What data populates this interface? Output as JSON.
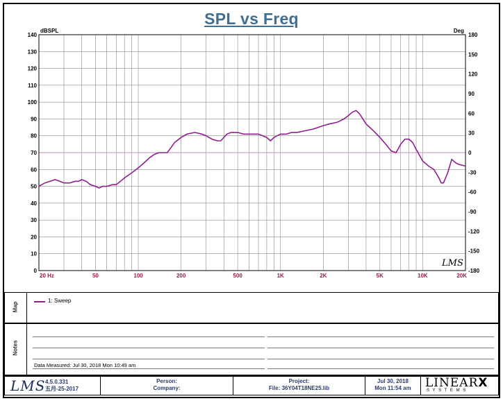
{
  "title": "SPL vs Freq",
  "colors": {
    "trace": "#8e1e8e",
    "title": "#3f6e92",
    "x_ticks": "#9b1c48",
    "zero_line": "#c78ac7"
  },
  "chart_data": {
    "type": "line",
    "title": "SPL vs Freq",
    "xscale": "log",
    "xlim": [
      20,
      20000
    ],
    "ylim": [
      0,
      140
    ],
    "y2lim": [
      -180,
      180
    ],
    "ylabel": "dBSPL",
    "y2label": "Deg",
    "xlabel": "",
    "grid": true,
    "x_tick_labels": [
      "20 Hz",
      "50",
      "100",
      "200",
      "500",
      "1K",
      "2K",
      "5K",
      "10K",
      "20K"
    ],
    "x_tick_values": [
      20,
      50,
      100,
      200,
      500,
      1000,
      2000,
      5000,
      10000,
      20000
    ],
    "y_ticks": [
      0,
      10,
      20,
      30,
      40,
      50,
      60,
      70,
      80,
      90,
      100,
      110,
      120,
      130,
      140
    ],
    "y2_ticks": [
      -180,
      -150,
      -120,
      -90,
      -60,
      -30,
      0,
      30,
      60,
      90,
      120,
      150,
      180
    ],
    "series": [
      {
        "name": "1: Sweep",
        "x": [
          20,
          22,
          24,
          26,
          28,
          30,
          33,
          36,
          38,
          40,
          43,
          46,
          50,
          53,
          56,
          60,
          66,
          70,
          75,
          80,
          90,
          100,
          110,
          120,
          130,
          140,
          150,
          160,
          170,
          180,
          200,
          220,
          250,
          280,
          300,
          330,
          360,
          380,
          400,
          420,
          450,
          500,
          550,
          600,
          700,
          800,
          850,
          900,
          1000,
          1100,
          1200,
          1300,
          1500,
          1700,
          2000,
          2200,
          2500,
          2800,
          3000,
          3200,
          3400,
          3600,
          4000,
          4500,
          5000,
          5500,
          6000,
          6500,
          7000,
          7500,
          8000,
          8500,
          9000,
          10000,
          11000,
          12000,
          13000,
          13500,
          14000,
          15000,
          16000,
          17000,
          18000,
          20000
        ],
        "values": [
          50,
          52,
          53,
          54,
          53,
          52,
          52,
          53,
          53,
          54,
          53,
          51,
          50,
          49,
          50,
          50,
          51,
          51,
          53,
          55,
          58,
          61,
          64,
          67,
          69,
          70,
          70,
          70,
          73,
          76,
          79,
          81,
          82,
          81,
          80,
          78,
          77,
          77,
          79,
          81,
          82,
          82,
          81,
          81,
          81,
          79,
          77,
          79,
          81,
          81,
          82,
          82,
          83,
          84,
          86,
          87,
          88,
          90,
          92,
          94,
          95,
          93,
          87,
          83,
          79,
          75,
          71,
          70,
          75,
          78,
          78,
          76,
          72,
          65,
          62,
          60,
          55,
          52,
          52,
          58,
          66,
          64,
          63,
          62
        ]
      }
    ],
    "annotations": [
      "LMS"
    ]
  },
  "panels": {
    "map_label": "Map",
    "notes_label": "Notes",
    "legend_entry": "1: Sweep",
    "data_measured": "Data Measured: Jul 30, 2018  Mon 10:49 am"
  },
  "footer": {
    "version": "4.5.0.331",
    "build_date": "五月-25-2017",
    "person": "Person:",
    "company": "Company:",
    "project": "Project:",
    "file": "File: 36Y04T18NE25.lib",
    "date": "Jul 30, 2018",
    "time": "Mon 11:54 am",
    "brand_top": "LINEAR",
    "brand_x": "X",
    "brand_sub": "S Y S T E M S"
  },
  "logo_text": "LMS"
}
